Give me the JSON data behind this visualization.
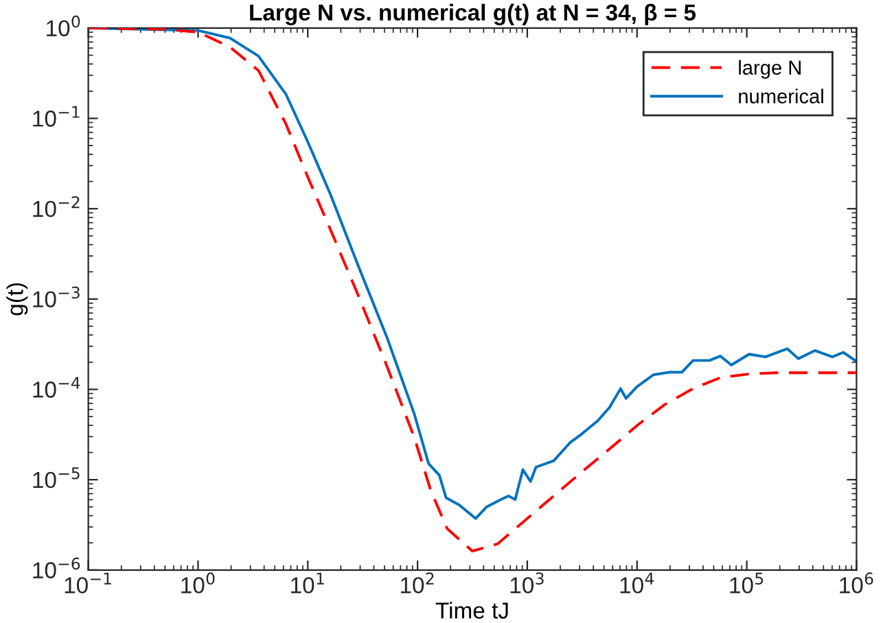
{
  "chart_data": {
    "type": "line",
    "title": "Large N vs. numerical g(t) at N = 34, β = 5",
    "xlabel": "Time tJ",
    "ylabel": "g(t)",
    "log": "xy",
    "grid": false,
    "legend": "top right",
    "marker": "none",
    "xlim": [
      0.1,
      1000000
    ],
    "ylim": [
      1e-06,
      1
    ],
    "xticks": [
      {
        "value": 0.1,
        "label": "10$^{−1}$"
      },
      {
        "value": 1,
        "label": "10$^{0}$"
      },
      {
        "value": 10,
        "label": "10$^{1}$"
      },
      {
        "value": 100,
        "label": "10$^{2}$"
      },
      {
        "value": 1000,
        "label": "10$^{3}$"
      },
      {
        "value": 10000,
        "label": "10$^{4}$"
      },
      {
        "value": 100000,
        "label": "10$^{5}$"
      },
      {
        "value": 1000000,
        "label": "10$^{6}$"
      }
    ],
    "yticks": [
      {
        "value": 1e-06,
        "label": "10$^{−6}$"
      },
      {
        "value": 1e-05,
        "label": "10$^{−5}$"
      },
      {
        "value": 0.0001,
        "label": "10$^{−4}$"
      },
      {
        "value": 0.001,
        "label": "10$^{−3}$"
      },
      {
        "value": 0.01,
        "label": "10$^{−2}$"
      },
      {
        "value": 0.1,
        "label": "10$^{−1}$"
      },
      {
        "value": 1,
        "label": "10$^{0}$"
      }
    ],
    "series": [
      {
        "name": "large N",
        "color": "#ff0000",
        "line_style": "dashed",
        "x": [
          0.1,
          0.49,
          1,
          1.95,
          3.55,
          6.31,
          10,
          16.2,
          28.8,
          52.5,
          93.3,
          132,
          186,
          316,
          537,
          955,
          1740,
          3090,
          5620,
          10000,
          17800,
          32400,
          57500,
          105000,
          186000,
          1000000
        ],
        "values": [
          1,
          0.97,
          0.9,
          0.617,
          0.339,
          0.0871,
          0.0224,
          0.00575,
          0.0011,
          0.000182,
          2.95e-05,
          7.59e-06,
          2.88e-06,
          1.62e-06,
          1.95e-06,
          3.55e-06,
          6.61e-06,
          1.2e-05,
          2.19e-05,
          3.98e-05,
          6.76e-05,
          0.000102,
          0.000135,
          0.000148,
          0.000153,
          0.000153
        ]
      },
      {
        "name": "numerical",
        "color": "#0072bd",
        "line_style": "solid",
        "x": [
          0.1,
          1,
          1.95,
          3.55,
          6.31,
          10,
          16.2,
          28.8,
          52.5,
          93.3,
          126,
          158,
          182,
          240,
          339,
          427,
          575,
          676,
          776,
          912,
          1070,
          1200,
          1740,
          2450,
          3090,
          4370,
          5620,
          7080,
          7940,
          10000,
          14100,
          20000,
          25700,
          32400,
          45700,
          57500,
          72400,
          105000,
          148000,
          234000,
          295000,
          417000,
          603000,
          759000,
          1000000
        ],
        "values": [
          1,
          0.94,
          0.776,
          0.49,
          0.186,
          0.055,
          0.0141,
          0.00234,
          0.00038,
          5.37e-05,
          1.51e-05,
          1.12e-05,
          6.31e-06,
          5.25e-06,
          3.72e-06,
          5.01e-06,
          6.03e-06,
          6.61e-06,
          6.03e-06,
          1.29e-05,
          9.55e-06,
          1.38e-05,
          1.62e-05,
          2.57e-05,
          3.16e-05,
          4.47e-05,
          6.31e-05,
          0.000102,
          7.94e-05,
          0.000107,
          0.000145,
          0.000155,
          0.000155,
          0.000209,
          0.000209,
          0.000234,
          0.000186,
          0.000245,
          0.000229,
          0.000282,
          0.000219,
          0.000269,
          0.000229,
          0.000257,
          0.000204
        ]
      }
    ]
  }
}
